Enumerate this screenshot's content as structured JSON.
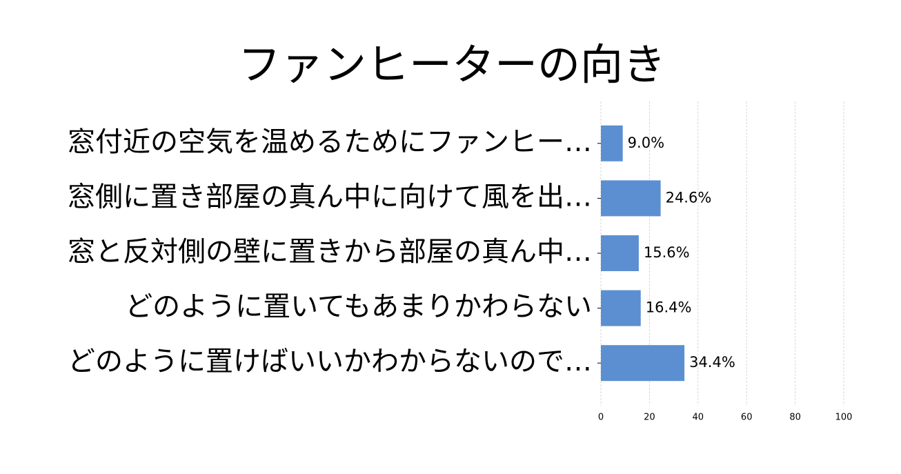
{
  "chart_data": {
    "type": "barh",
    "title": "ファンヒーターの向き",
    "categories": [
      "窓付近の空気を温めるためにファンヒー…",
      "窓側に置き部屋の真ん中に向けて風を出…",
      "窓と反対側の壁に置きから部屋の真ん中…",
      "どのように置いてもあまりかわらない",
      "どのように置けばいいかわからないので…"
    ],
    "values": [
      9.0,
      24.6,
      15.6,
      16.4,
      34.4
    ],
    "value_labels": [
      "9.0%",
      "24.6%",
      "15.6%",
      "16.4%",
      "34.4%"
    ],
    "color": "#5b8fd1",
    "xlim": [
      0,
      100
    ],
    "xticks": [
      0,
      20,
      40,
      60,
      80,
      100
    ],
    "grid": true
  }
}
